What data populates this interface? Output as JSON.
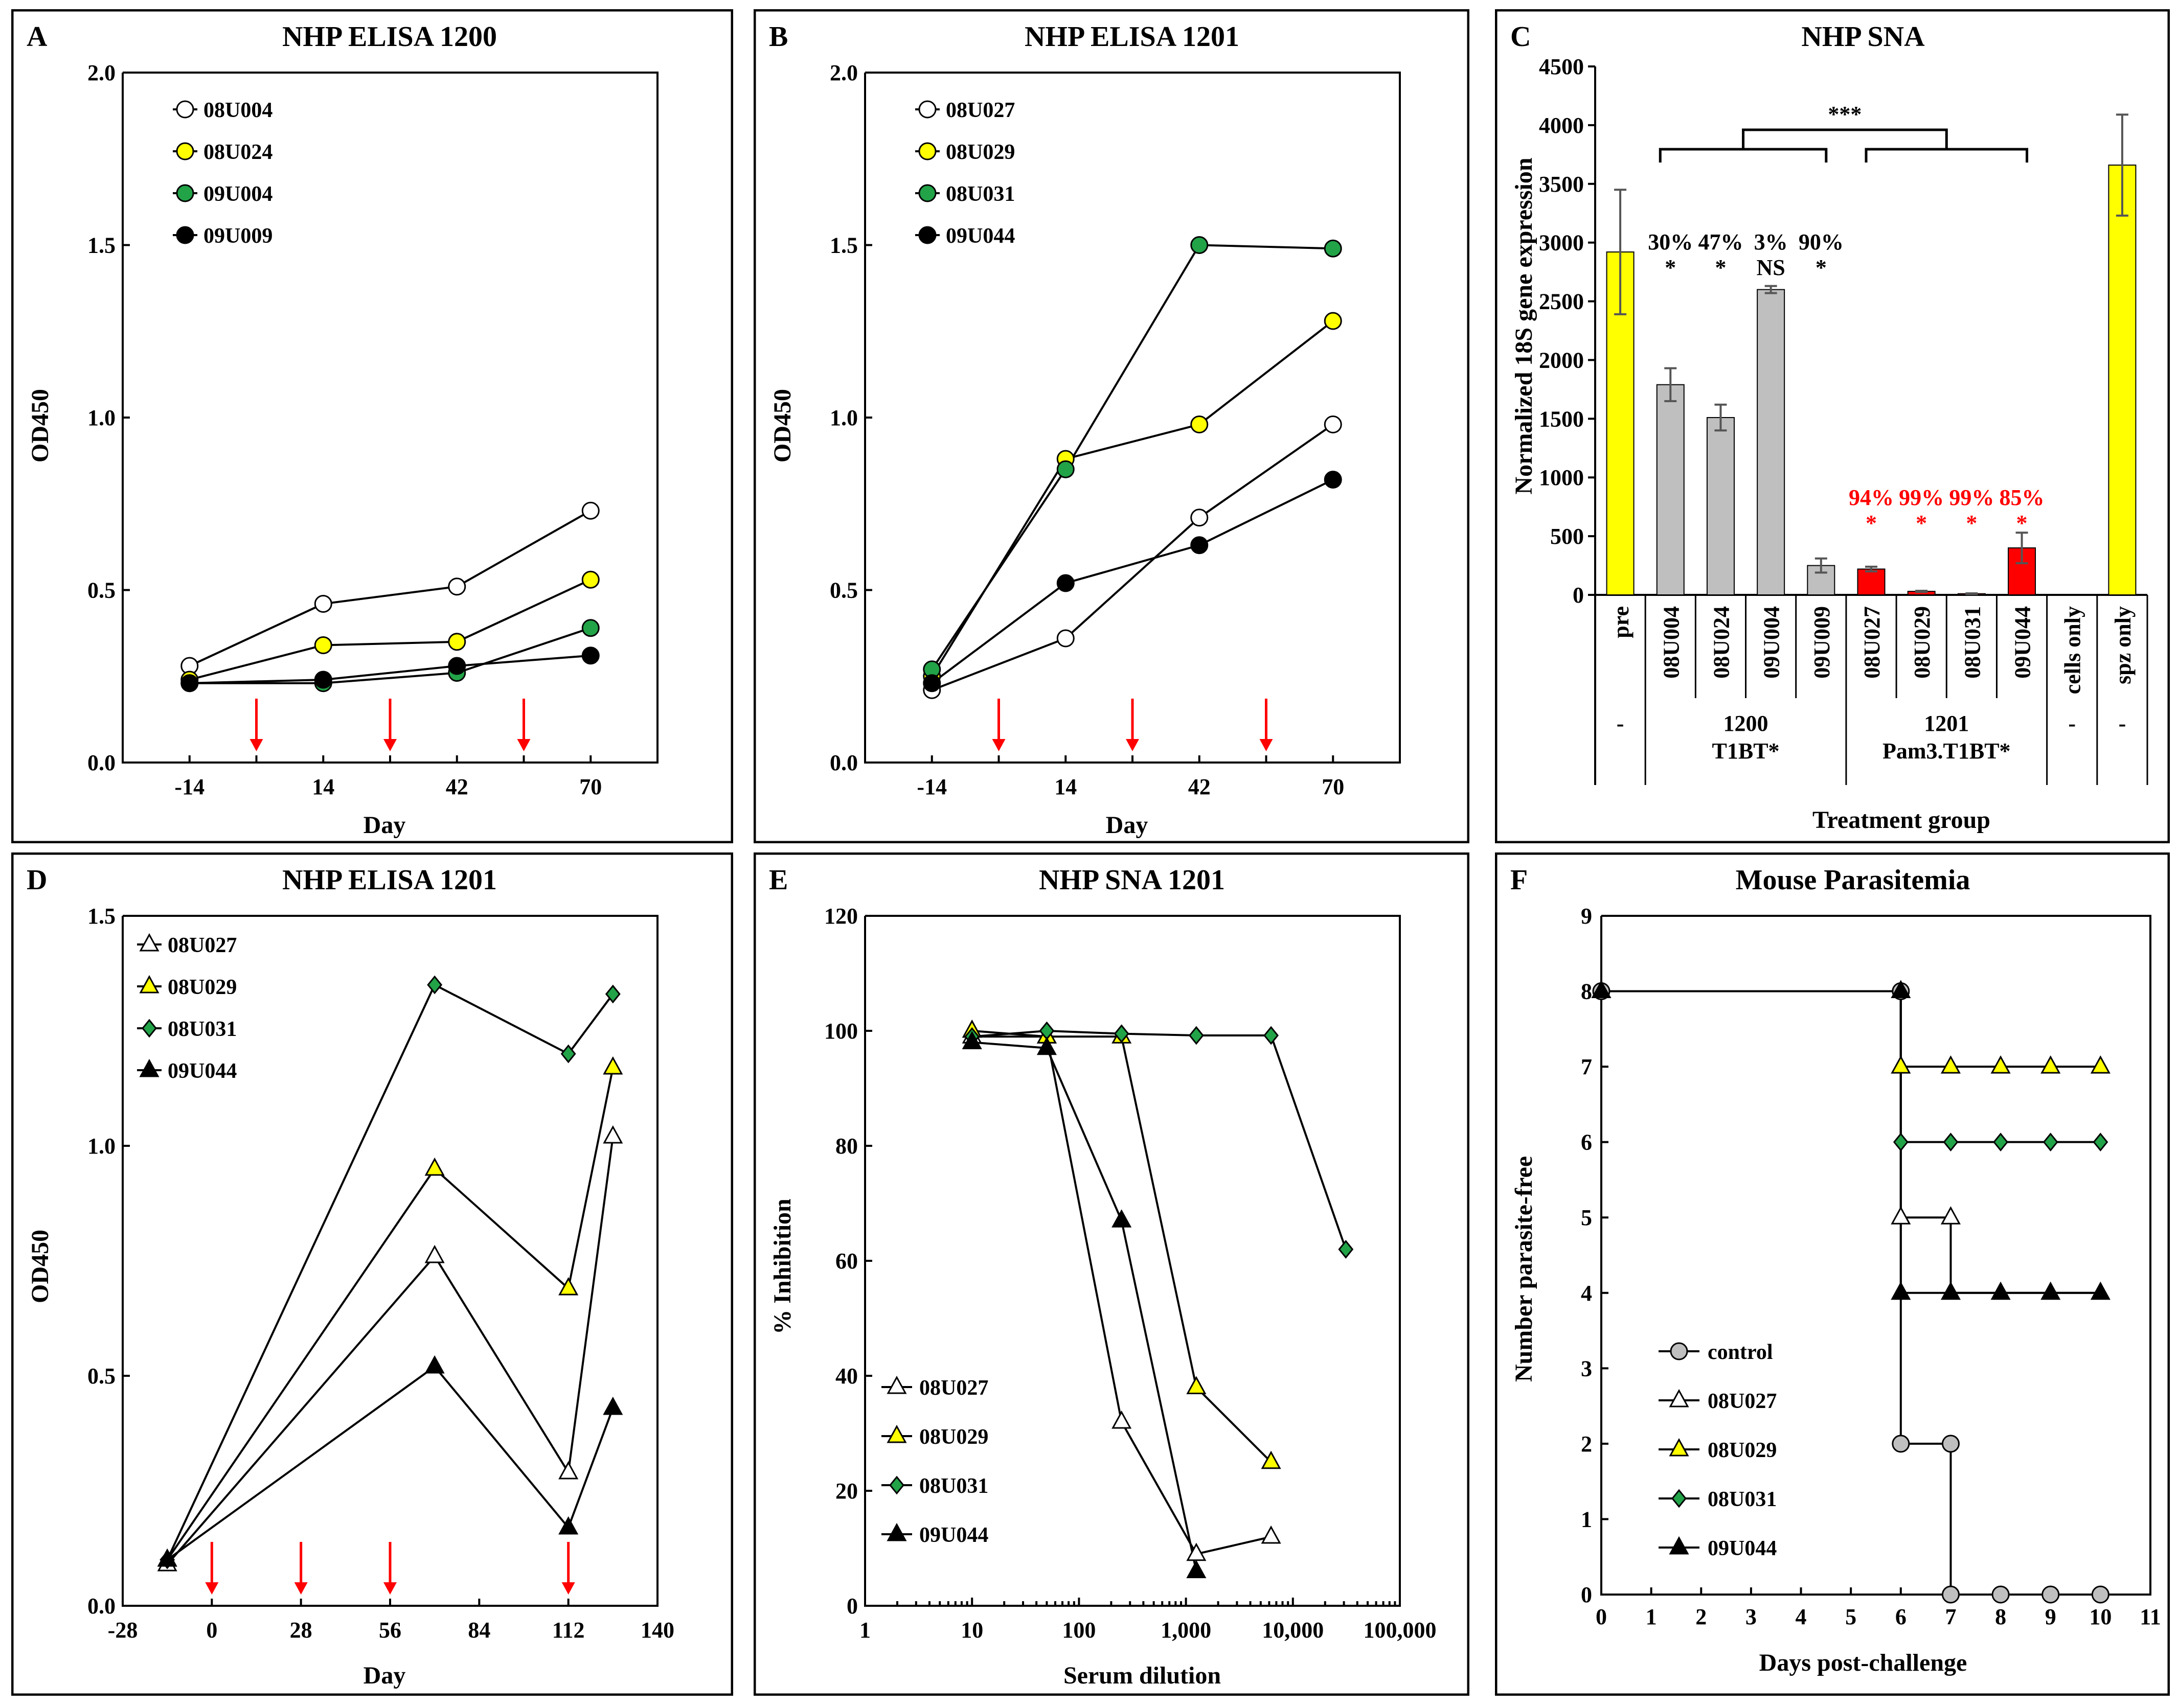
{
  "colors": {
    "white": "#ffffff",
    "yellow": "#ffff00",
    "green": "#22a348",
    "black": "#000000",
    "grey": "#bfbfbf",
    "red": "#ff0000",
    "arrow": "#ff0000"
  },
  "chart_data": [
    {
      "id": "A",
      "type": "line",
      "letter": "A",
      "title": "NHP ELISA 1200",
      "xlabel": "Day",
      "ylabel": "OD450",
      "xlim": [
        -28,
        84
      ],
      "ylim": [
        0,
        2
      ],
      "xticks": [
        -14,
        14,
        42,
        70
      ],
      "yticks": [
        "0.0",
        "0.5",
        "1.0",
        "1.5",
        "2.0"
      ],
      "ytick_values": [
        0,
        0.5,
        1,
        1.5,
        2
      ],
      "arrows": [
        0,
        28,
        56
      ],
      "x": [
        -14,
        14,
        42,
        70
      ],
      "series": [
        {
          "name": "08U004",
          "marker": "circle",
          "fill": "white",
          "values": [
            0.28,
            0.46,
            0.51,
            0.73
          ]
        },
        {
          "name": "08U024",
          "marker": "circle",
          "fill": "yellow",
          "values": [
            0.24,
            0.34,
            0.35,
            0.53
          ]
        },
        {
          "name": "09U004",
          "marker": "circle",
          "fill": "green",
          "values": [
            0.23,
            0.23,
            0.26,
            0.39
          ]
        },
        {
          "name": "09U009",
          "marker": "circle",
          "fill": "black",
          "values": [
            0.23,
            0.24,
            0.28,
            0.31
          ]
        }
      ]
    },
    {
      "id": "B",
      "type": "line",
      "letter": "B",
      "title": "NHP ELISA 1201",
      "xlabel": "Day",
      "ylabel": "OD450",
      "xlim": [
        -28,
        84
      ],
      "ylim": [
        0,
        2
      ],
      "xticks": [
        -14,
        14,
        42,
        70
      ],
      "yticks": [
        "0.0",
        "0.5",
        "1.0",
        "1.5",
        "2.0"
      ],
      "ytick_values": [
        0,
        0.5,
        1,
        1.5,
        2
      ],
      "arrows": [
        0,
        28,
        56
      ],
      "x": [
        -14,
        14,
        42,
        70
      ],
      "series": [
        {
          "name": "08U027",
          "marker": "circle",
          "fill": "white",
          "values": [
            0.21,
            0.36,
            0.71,
            0.98
          ]
        },
        {
          "name": "08U029",
          "marker": "circle",
          "fill": "yellow",
          "values": [
            0.25,
            0.88,
            0.98,
            1.28
          ]
        },
        {
          "name": "08U031",
          "marker": "circle",
          "fill": "green",
          "values": [
            0.27,
            0.85,
            1.5,
            1.49
          ]
        },
        {
          "name": "09U044",
          "marker": "circle",
          "fill": "black",
          "values": [
            0.23,
            0.52,
            0.63,
            0.82
          ]
        }
      ]
    },
    {
      "id": "C",
      "type": "bar",
      "letter": "C",
      "title": "NHP SNA",
      "ylabel": "Normalized 18S gene expression",
      "xlabel": "Treatment group",
      "ylim": [
        0,
        4500
      ],
      "yticks": [
        "0",
        "500",
        "1000",
        "1500",
        "2000",
        "2500",
        "3000",
        "3500",
        "4000",
        "4500"
      ],
      "ytick_values": [
        0,
        500,
        1000,
        1500,
        2000,
        2500,
        3000,
        3500,
        4000,
        4500
      ],
      "categories": [
        "pre",
        "08U004",
        "08U024",
        "09U004",
        "09U009",
        "08U027",
        "08U029",
        "08U031",
        "09U044",
        "cells only",
        "spz only"
      ],
      "values": [
        2920,
        1790,
        1510,
        2600,
        250,
        220,
        30,
        10,
        400,
        0,
        3660
      ],
      "errors": [
        530,
        140,
        110,
        30,
        60,
        20,
        5,
        3,
        130,
        0,
        430
      ],
      "bar_fill": [
        "yellow",
        "grey",
        "grey",
        "grey",
        "grey",
        "red",
        "red",
        "red",
        "red",
        "grey",
        "yellow"
      ],
      "pct_labels": [
        {
          "index": 1,
          "pct": "30%",
          "sig": "*",
          "color": "black"
        },
        {
          "index": 2,
          "pct": "47%",
          "sig": "*",
          "color": "black"
        },
        {
          "index": 3,
          "pct": "3%",
          "sig": "NS",
          "color": "black"
        },
        {
          "index": 4,
          "pct": "90%",
          "sig": "*",
          "color": "black"
        },
        {
          "index": 5,
          "pct": "94%",
          "sig": "*",
          "color": "red"
        },
        {
          "index": 6,
          "pct": "99%",
          "sig": "*",
          "color": "red"
        },
        {
          "index": 7,
          "pct": "99%",
          "sig": "*",
          "color": "red"
        },
        {
          "index": 8,
          "pct": "85%",
          "sig": "*",
          "color": "red"
        }
      ],
      "bracket_label": "***",
      "groups": [
        {
          "line1": "-",
          "line2": "",
          "span": [
            0,
            0
          ]
        },
        {
          "line1": "1200",
          "line2": "T1BT*",
          "span": [
            1,
            4
          ]
        },
        {
          "line1": "1201",
          "line2": "Pam3.T1BT*",
          "span": [
            5,
            8
          ]
        },
        {
          "line1": "-",
          "line2": "",
          "span": [
            9,
            9
          ]
        },
        {
          "line1": "-",
          "line2": "",
          "span": [
            10,
            10
          ]
        }
      ]
    },
    {
      "id": "D",
      "type": "line",
      "letter": "D",
      "title": "NHP ELISA 1201",
      "xlabel": "Day",
      "ylabel": "OD450",
      "xlim": [
        -28,
        140
      ],
      "ylim": [
        0,
        1.5
      ],
      "xticks": [
        -28,
        0,
        28,
        56,
        84,
        112,
        140
      ],
      "yticks": [
        "0.0",
        "0.5",
        "1.0",
        "1.5"
      ],
      "ytick_values": [
        0,
        0.5,
        1,
        1.5
      ],
      "arrows": [
        0,
        28,
        56,
        112
      ],
      "x": [
        -14,
        70,
        112,
        126
      ],
      "series": [
        {
          "name": "08U027",
          "marker": "triangle",
          "fill": "white",
          "values": [
            0.09,
            0.76,
            0.29,
            1.02
          ]
        },
        {
          "name": "08U029",
          "marker": "triangle",
          "fill": "yellow",
          "values": [
            0.1,
            0.95,
            0.69,
            1.17
          ]
        },
        {
          "name": "08U031",
          "marker": "diamond",
          "fill": "green",
          "values": [
            0.1,
            1.35,
            1.2,
            1.33
          ]
        },
        {
          "name": "09U044",
          "marker": "triangle",
          "fill": "black",
          "values": [
            0.1,
            0.52,
            0.17,
            0.43
          ]
        }
      ]
    },
    {
      "id": "E",
      "type": "line",
      "letter": "E",
      "title": "NHP SNA 1201",
      "xlabel": "Serum dilution",
      "ylabel": "% Inhibition",
      "xscale": "log",
      "xlim": [
        1,
        100000
      ],
      "ylim": [
        0,
        120
      ],
      "xticks": [
        "1",
        "10",
        "100",
        "1,000",
        "10,000",
        "100,000"
      ],
      "xtick_values": [
        1,
        10,
        100,
        1000,
        10000,
        100000
      ],
      "yticks": [
        "0",
        "20",
        "40",
        "60",
        "80",
        "100",
        "120"
      ],
      "ytick_values": [
        0,
        20,
        40,
        60,
        80,
        100,
        120
      ],
      "series": [
        {
          "name": "08U027",
          "marker": "triangle",
          "fill": "white",
          "x": [
            10,
            50,
            250,
            1250,
            6250
          ],
          "values": [
            99,
            99,
            32,
            9,
            12
          ]
        },
        {
          "name": "08U029",
          "marker": "triangle",
          "fill": "yellow",
          "x": [
            10,
            50,
            250,
            1250,
            6250
          ],
          "values": [
            100,
            99,
            99,
            38,
            25
          ]
        },
        {
          "name": "08U031",
          "marker": "diamond",
          "fill": "green",
          "x": [
            10,
            50,
            250,
            1250,
            6250,
            31250
          ],
          "values": [
            99,
            100,
            99.5,
            99.2,
            99.2,
            62
          ]
        },
        {
          "name": "09U044",
          "marker": "triangle",
          "fill": "black",
          "x": [
            10,
            50,
            250,
            1250
          ],
          "values": [
            98,
            97,
            67,
            6
          ]
        }
      ]
    },
    {
      "id": "F",
      "type": "line",
      "letter": "F",
      "title": "Mouse Parasitemia",
      "xlabel": "Days post-challenge",
      "ylabel": "Number parasite-free",
      "xlim": [
        0,
        11
      ],
      "ylim": [
        0,
        9
      ],
      "xticks": [
        "0",
        "1",
        "2",
        "3",
        "4",
        "5",
        "6",
        "7",
        "8",
        "9",
        "10",
        "11"
      ],
      "xtick_values": [
        0,
        1,
        2,
        3,
        4,
        5,
        6,
        7,
        8,
        9,
        10,
        11
      ],
      "yticks": [
        "0",
        "1",
        "2",
        "3",
        "4",
        "5",
        "6",
        "7",
        "8",
        "9"
      ],
      "ytick_values": [
        0,
        1,
        2,
        3,
        4,
        5,
        6,
        7,
        8,
        9
      ],
      "series": [
        {
          "name": "control",
          "marker": "circle",
          "fill": "grey",
          "x": [
            0,
            6,
            6,
            7,
            7,
            8,
            9,
            10
          ],
          "values": [
            8,
            8,
            2,
            2,
            0,
            0,
            0,
            0
          ],
          "markers_idx": [
            0,
            1,
            2,
            3,
            4,
            5,
            6,
            7
          ]
        },
        {
          "name": "08U027",
          "marker": "triangle",
          "fill": "white",
          "x": [
            0,
            6,
            6,
            7,
            7,
            8,
            9,
            10
          ],
          "values": [
            8,
            8,
            5,
            5,
            4,
            4,
            4,
            4
          ],
          "markers_idx": [
            2,
            3
          ]
        },
        {
          "name": "08U029",
          "marker": "triangle",
          "fill": "yellow",
          "x": [
            0,
            6,
            6,
            7,
            8,
            9,
            10
          ],
          "values": [
            8,
            8,
            7,
            7,
            7,
            7,
            7
          ],
          "markers_idx": [
            2,
            3,
            4,
            5,
            6
          ]
        },
        {
          "name": "08U031",
          "marker": "diamond",
          "fill": "green",
          "x": [
            0,
            6,
            6,
            7,
            8,
            9,
            10
          ],
          "values": [
            8,
            8,
            6,
            6,
            6,
            6,
            6
          ],
          "markers_idx": [
            2,
            3,
            4,
            5,
            6
          ]
        },
        {
          "name": "09U044",
          "marker": "triangle",
          "fill": "black",
          "x": [
            0,
            6,
            6,
            7,
            8,
            9,
            10
          ],
          "values": [
            8,
            8,
            4,
            4,
            4,
            4,
            4
          ],
          "markers_idx": [
            0,
            1,
            2,
            3,
            4,
            5,
            6
          ]
        }
      ]
    }
  ]
}
